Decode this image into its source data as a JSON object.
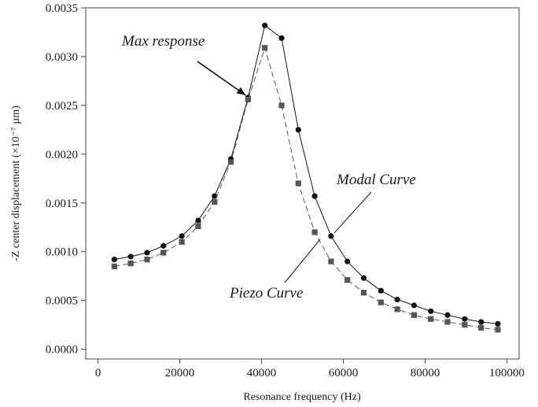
{
  "chart_data": {
    "type": "line",
    "title": "",
    "xlabel": "Resonance frequency (Hz)",
    "ylabel": "-Z center displacement (×10⁻⁷ µm)",
    "xlim": [
      -3000,
      103000
    ],
    "ylim": [
      -0.0001,
      0.0035
    ],
    "x_ticks": [
      0,
      20000,
      40000,
      60000,
      80000,
      100000
    ],
    "x_tick_labels": [
      "0",
      "20000",
      "40000",
      "60000",
      "80000",
      "100000"
    ],
    "y_ticks": [
      0.0,
      0.0005,
      0.001,
      0.0015,
      0.002,
      0.0025,
      0.003,
      0.0035
    ],
    "y_tick_labels": [
      "0.0000",
      "0.0005",
      "0.0010",
      "0.0015",
      "0.0020",
      "0.0025",
      "0.0030",
      "0.0035"
    ],
    "grid": false,
    "x": [
      4000,
      8000,
      12000,
      16000,
      20500,
      24500,
      28500,
      32500,
      36700,
      40800,
      44900,
      49000,
      53000,
      57000,
      61000,
      65000,
      69200,
      73200,
      77300,
      81400,
      85500,
      89700,
      93700,
      97800
    ],
    "series": [
      {
        "name": "Modal Curve",
        "color": "#111111",
        "marker": "circle",
        "line": "solid",
        "values": [
          0.00092,
          0.00095,
          0.00099,
          0.00106,
          0.00116,
          0.00132,
          0.00157,
          0.00195,
          0.00258,
          0.00332,
          0.00319,
          0.00225,
          0.00157,
          0.00116,
          0.0009,
          0.00073,
          0.0006,
          0.00051,
          0.00045,
          0.00039,
          0.00035,
          0.00031,
          0.00028,
          0.00026
        ]
      },
      {
        "name": "Piezo Curve",
        "color": "#555555",
        "marker": "square",
        "line": "dashed",
        "values": [
          0.00085,
          0.00088,
          0.00092,
          0.00099,
          0.0011,
          0.00126,
          0.00151,
          0.00192,
          0.00256,
          0.00309,
          0.0025,
          0.0017,
          0.0012,
          0.0009,
          0.00071,
          0.00058,
          0.00048,
          0.00041,
          0.00035,
          0.00031,
          0.00028,
          0.00025,
          0.00022,
          0.0002
        ]
      }
    ],
    "annotations": [
      {
        "text": "Max response",
        "target_series": 0,
        "target_x": 36700
      },
      {
        "text": "Modal Curve",
        "target_series": 0,
        "target_x": 57000
      },
      {
        "text": "Piezo Curve",
        "target_series": 1,
        "target_x": 53000
      }
    ]
  }
}
